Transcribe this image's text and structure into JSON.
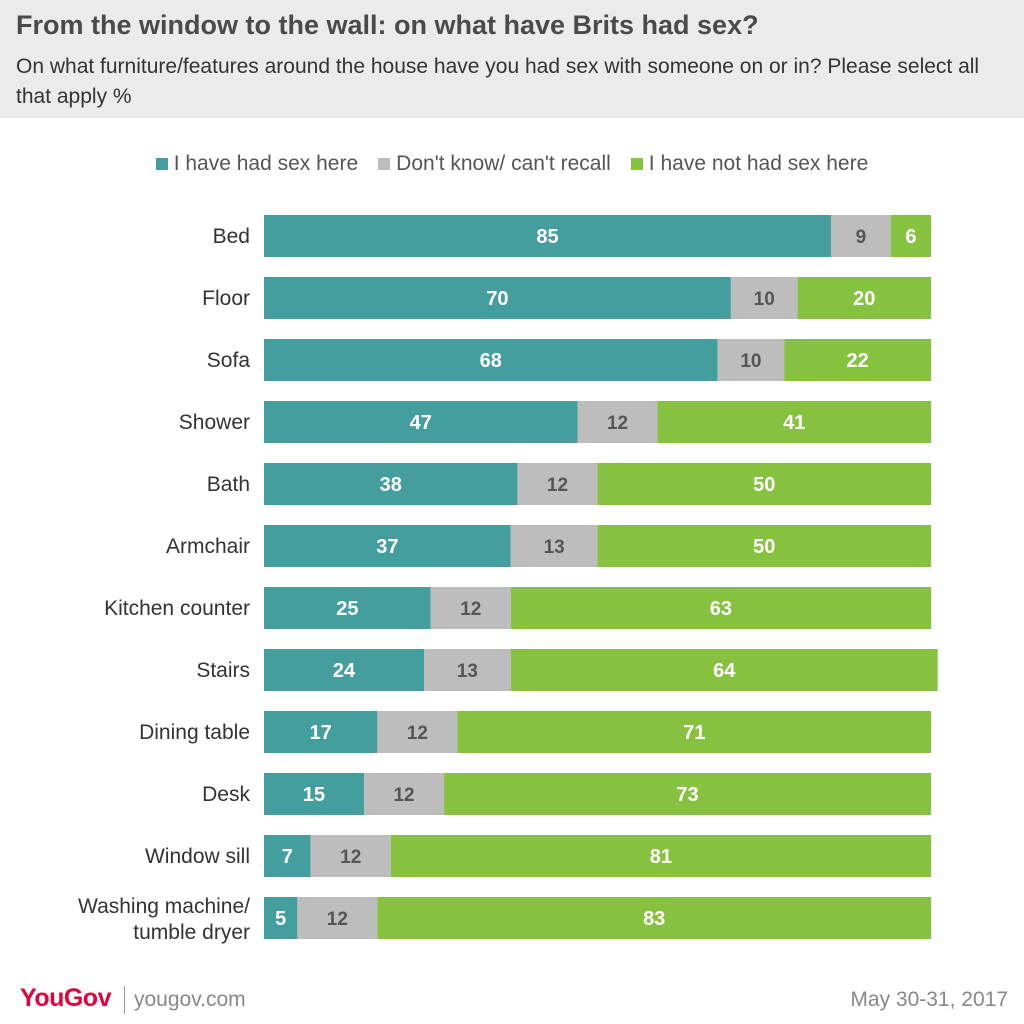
{
  "header": {
    "title": "From the window to the wall: on what have Brits had sex?",
    "subtitle": "On what furniture/features around the house have you had sex with someone on or in? Please select all that apply %"
  },
  "legend": {
    "items": [
      {
        "label": "I have had sex here",
        "color": "#449e9e"
      },
      {
        "label": "Don't know/ can't recall",
        "color": "#bdbdbd"
      },
      {
        "label": "I have not had sex here",
        "color": "#86c23f"
      }
    ]
  },
  "footer": {
    "logo_text": "YouGov",
    "site": "yougov.com",
    "date": "May 30-31, 2017"
  },
  "chart_data": {
    "type": "bar",
    "orientation": "horizontal",
    "stacked": true,
    "xlim": [
      0,
      100
    ],
    "categories": [
      "Bed",
      "Floor",
      "Sofa",
      "Shower",
      "Bath",
      "Armchair",
      "Kitchen counter",
      "Stairs",
      "Dining table",
      "Desk",
      "Window sill",
      "Washing machine/ tumble dryer"
    ],
    "series": [
      {
        "name": "I have had sex here",
        "color": "#449e9e",
        "label_color": "#ffffff",
        "values": [
          85,
          70,
          68,
          47,
          38,
          37,
          25,
          24,
          17,
          15,
          7,
          5
        ]
      },
      {
        "name": "Don't know/ can't recall",
        "color": "#bdbdbd",
        "label_color": "#555555",
        "values": [
          9,
          10,
          10,
          12,
          12,
          13,
          12,
          13,
          12,
          12,
          12,
          12
        ]
      },
      {
        "name": "I have not had sex here",
        "color": "#86c23f",
        "label_color": "#ffffff",
        "values": [
          6,
          20,
          22,
          41,
          50,
          50,
          63,
          64,
          71,
          73,
          81,
          83
        ]
      }
    ]
  }
}
